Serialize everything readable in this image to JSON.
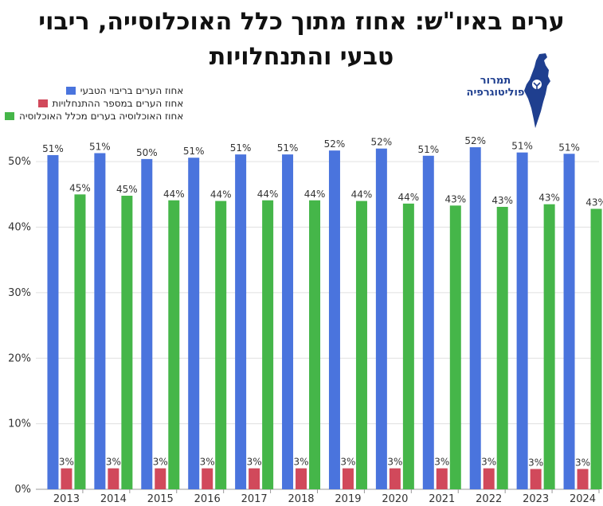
{
  "title_lines": [
    "ערים באיו\"ש: אחוז מתוך כלל האוכלוסייה, ריבוי",
    "טבעי והתנחלויות"
  ],
  "logo": {
    "line1": "תמרור",
    "line2": "פוליטוגרפיה",
    "icon": "israel-map-icon"
  },
  "colors": {
    "blue": "#4a74dd",
    "red": "#d1495b",
    "green": "#45b649",
    "grid": "#e0e0e0",
    "axis": "#999999"
  },
  "chart_data": {
    "type": "bar",
    "title": "ערים באיו\"ש: אחוז מתוך כלל האוכלוסייה, ריבוי טבעי והתנחלויות",
    "categories": [
      "2013",
      "2014",
      "2015",
      "2016",
      "2017",
      "2018",
      "2019",
      "2020",
      "2021",
      "2022",
      "2023",
      "2024"
    ],
    "ylim": [
      0,
      55
    ],
    "yticks": [
      0,
      10,
      20,
      30,
      40,
      50
    ],
    "ytick_labels": [
      "0%",
      "10%",
      "20%",
      "30%",
      "40%",
      "50%"
    ],
    "grid": true,
    "legend_position": "top-left",
    "series": [
      {
        "name": "אחוז הערים בריבוי הטבעי",
        "color": "#4a74dd",
        "values": [
          51.0,
          51.3,
          50.4,
          50.6,
          51.1,
          51.1,
          51.7,
          52.0,
          50.9,
          52.2,
          51.4,
          51.2
        ],
        "labels": [
          "51%",
          "51%",
          "50%",
          "51%",
          "51%",
          "51%",
          "52%",
          "52%",
          "51%",
          "52%",
          "51%",
          "51%"
        ]
      },
      {
        "name": "אחוז הערים במספר ההתנחלויות",
        "color": "#d1495b",
        "values": [
          3.2,
          3.2,
          3.2,
          3.2,
          3.2,
          3.2,
          3.2,
          3.2,
          3.2,
          3.2,
          3.1,
          3.1
        ],
        "labels": [
          "3%",
          "3%",
          "3%",
          "3%",
          "3%",
          "3%",
          "3%",
          "3%",
          "3%",
          "3%",
          "3%",
          "3%"
        ]
      },
      {
        "name": "אחוז האוכלוסיה בערים מכלל האוכלוסיה",
        "color": "#45b649",
        "values": [
          45.0,
          44.8,
          44.1,
          44.0,
          44.1,
          44.1,
          44.0,
          43.6,
          43.3,
          43.1,
          43.5,
          42.8
        ],
        "labels": [
          "45%",
          "45%",
          "44%",
          "44%",
          "44%",
          "44%",
          "44%",
          "44%",
          "43%",
          "43%",
          "43%",
          "43%"
        ]
      }
    ]
  }
}
